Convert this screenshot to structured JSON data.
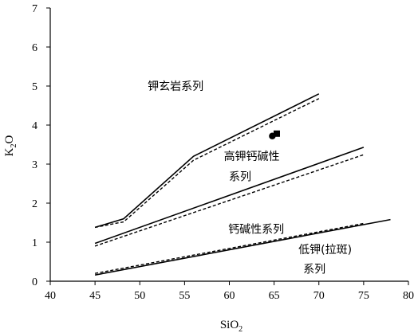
{
  "chart_data": {
    "type": "line",
    "title": "",
    "xlabel": {
      "main": "SiO",
      "sub": "2"
    },
    "ylabel": {
      "main": "K",
      "sub": "2",
      "tail": "O"
    },
    "xlim": [
      40,
      80
    ],
    "ylim": [
      0,
      7
    ],
    "xticks": [
      40,
      45,
      50,
      55,
      60,
      65,
      70,
      75,
      80
    ],
    "yticks": [
      0,
      1,
      2,
      3,
      4,
      5,
      6,
      7
    ],
    "grid": false,
    "series": [
      {
        "style": "solid",
        "points": [
          [
            45,
            1.38
          ],
          [
            48.2,
            1.6
          ],
          [
            56,
            3.2
          ],
          [
            70,
            4.8
          ]
        ]
      },
      {
        "style": "dashed",
        "points": [
          [
            45,
            1.38
          ],
          [
            48.2,
            1.52
          ],
          [
            56,
            3.1
          ],
          [
            70,
            4.68
          ]
        ]
      },
      {
        "style": "solid",
        "points": [
          [
            45,
            0.97
          ],
          [
            75,
            3.43
          ]
        ]
      },
      {
        "style": "dashed",
        "points": [
          [
            45,
            0.9
          ],
          [
            75,
            3.24
          ]
        ]
      },
      {
        "style": "solid",
        "points": [
          [
            45,
            0.16
          ],
          [
            78,
            1.58
          ]
        ]
      },
      {
        "style": "dashed",
        "points": [
          [
            45,
            0.2
          ],
          [
            75,
            1.48
          ]
        ]
      }
    ],
    "markers": [
      {
        "shape": "circle",
        "x": 64.8,
        "y": 3.72
      },
      {
        "shape": "square",
        "x": 65.3,
        "y": 3.78
      }
    ],
    "region_labels": [
      {
        "text": "钾玄岩系列",
        "x": 54,
        "y": 5.0
      },
      {
        "text": "高钾钙碱性",
        "x": 62.5,
        "y": 3.2
      },
      {
        "text": "系列",
        "x": 61.2,
        "y": 2.68
      },
      {
        "text": "钙碱性系列",
        "x": 63,
        "y": 1.34
      },
      {
        "text": "低钾(拉斑)",
        "x": 70.7,
        "y": 0.82
      },
      {
        "text": "系列",
        "x": 69.5,
        "y": 0.32
      }
    ]
  }
}
